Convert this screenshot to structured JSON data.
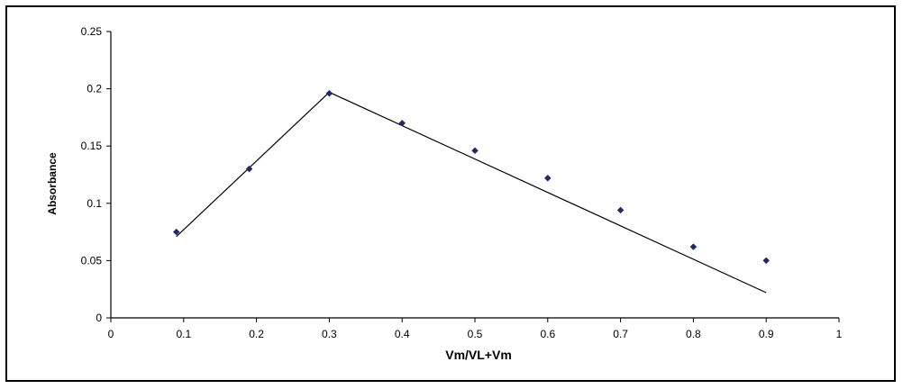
{
  "chart_data": {
    "type": "scatter",
    "title": "",
    "xlabel": "Vm/VL+Vm",
    "ylabel": "Absorbance",
    "xlim": [
      0,
      1
    ],
    "ylim": [
      0,
      0.25
    ],
    "x_ticks": [
      {
        "value": 0,
        "label": "0"
      },
      {
        "value": 0.1,
        "label": "0.1"
      },
      {
        "value": 0.2,
        "label": "0.2"
      },
      {
        "value": 0.3,
        "label": "0.3"
      },
      {
        "value": 0.4,
        "label": "0.4"
      },
      {
        "value": 0.5,
        "label": "0.5"
      },
      {
        "value": 0.6,
        "label": "0.6"
      },
      {
        "value": 0.7,
        "label": "0.7"
      },
      {
        "value": 0.8,
        "label": "0.8"
      },
      {
        "value": 0.9,
        "label": "0.9"
      },
      {
        "value": 1,
        "label": "1"
      }
    ],
    "y_ticks": [
      {
        "value": 0,
        "label": "0"
      },
      {
        "value": 0.05,
        "label": "0.05"
      },
      {
        "value": 0.1,
        "label": "0.1"
      },
      {
        "value": 0.15,
        "label": "0.15"
      },
      {
        "value": 0.2,
        "label": "0.2"
      },
      {
        "value": 0.25,
        "label": "0.25"
      }
    ],
    "grid": false,
    "legend": "none",
    "series": [
      {
        "kind": "points",
        "marker": "diamond",
        "color": "#1f2a6b",
        "points": [
          {
            "x": 0.09,
            "y": 0.075
          },
          {
            "x": 0.19,
            "y": 0.13
          },
          {
            "x": 0.3,
            "y": 0.196
          },
          {
            "x": 0.4,
            "y": 0.17
          },
          {
            "x": 0.5,
            "y": 0.146
          },
          {
            "x": 0.6,
            "y": 0.122
          },
          {
            "x": 0.7,
            "y": 0.094
          },
          {
            "x": 0.8,
            "y": 0.062
          },
          {
            "x": 0.9,
            "y": 0.05
          }
        ]
      },
      {
        "kind": "line",
        "color": "#000000",
        "segments": [
          {
            "x1": 0.09,
            "y1": 0.071,
            "x2": 0.3,
            "y2": 0.197
          },
          {
            "x1": 0.3,
            "y1": 0.197,
            "x2": 0.9,
            "y2": 0.022
          }
        ]
      }
    ]
  }
}
